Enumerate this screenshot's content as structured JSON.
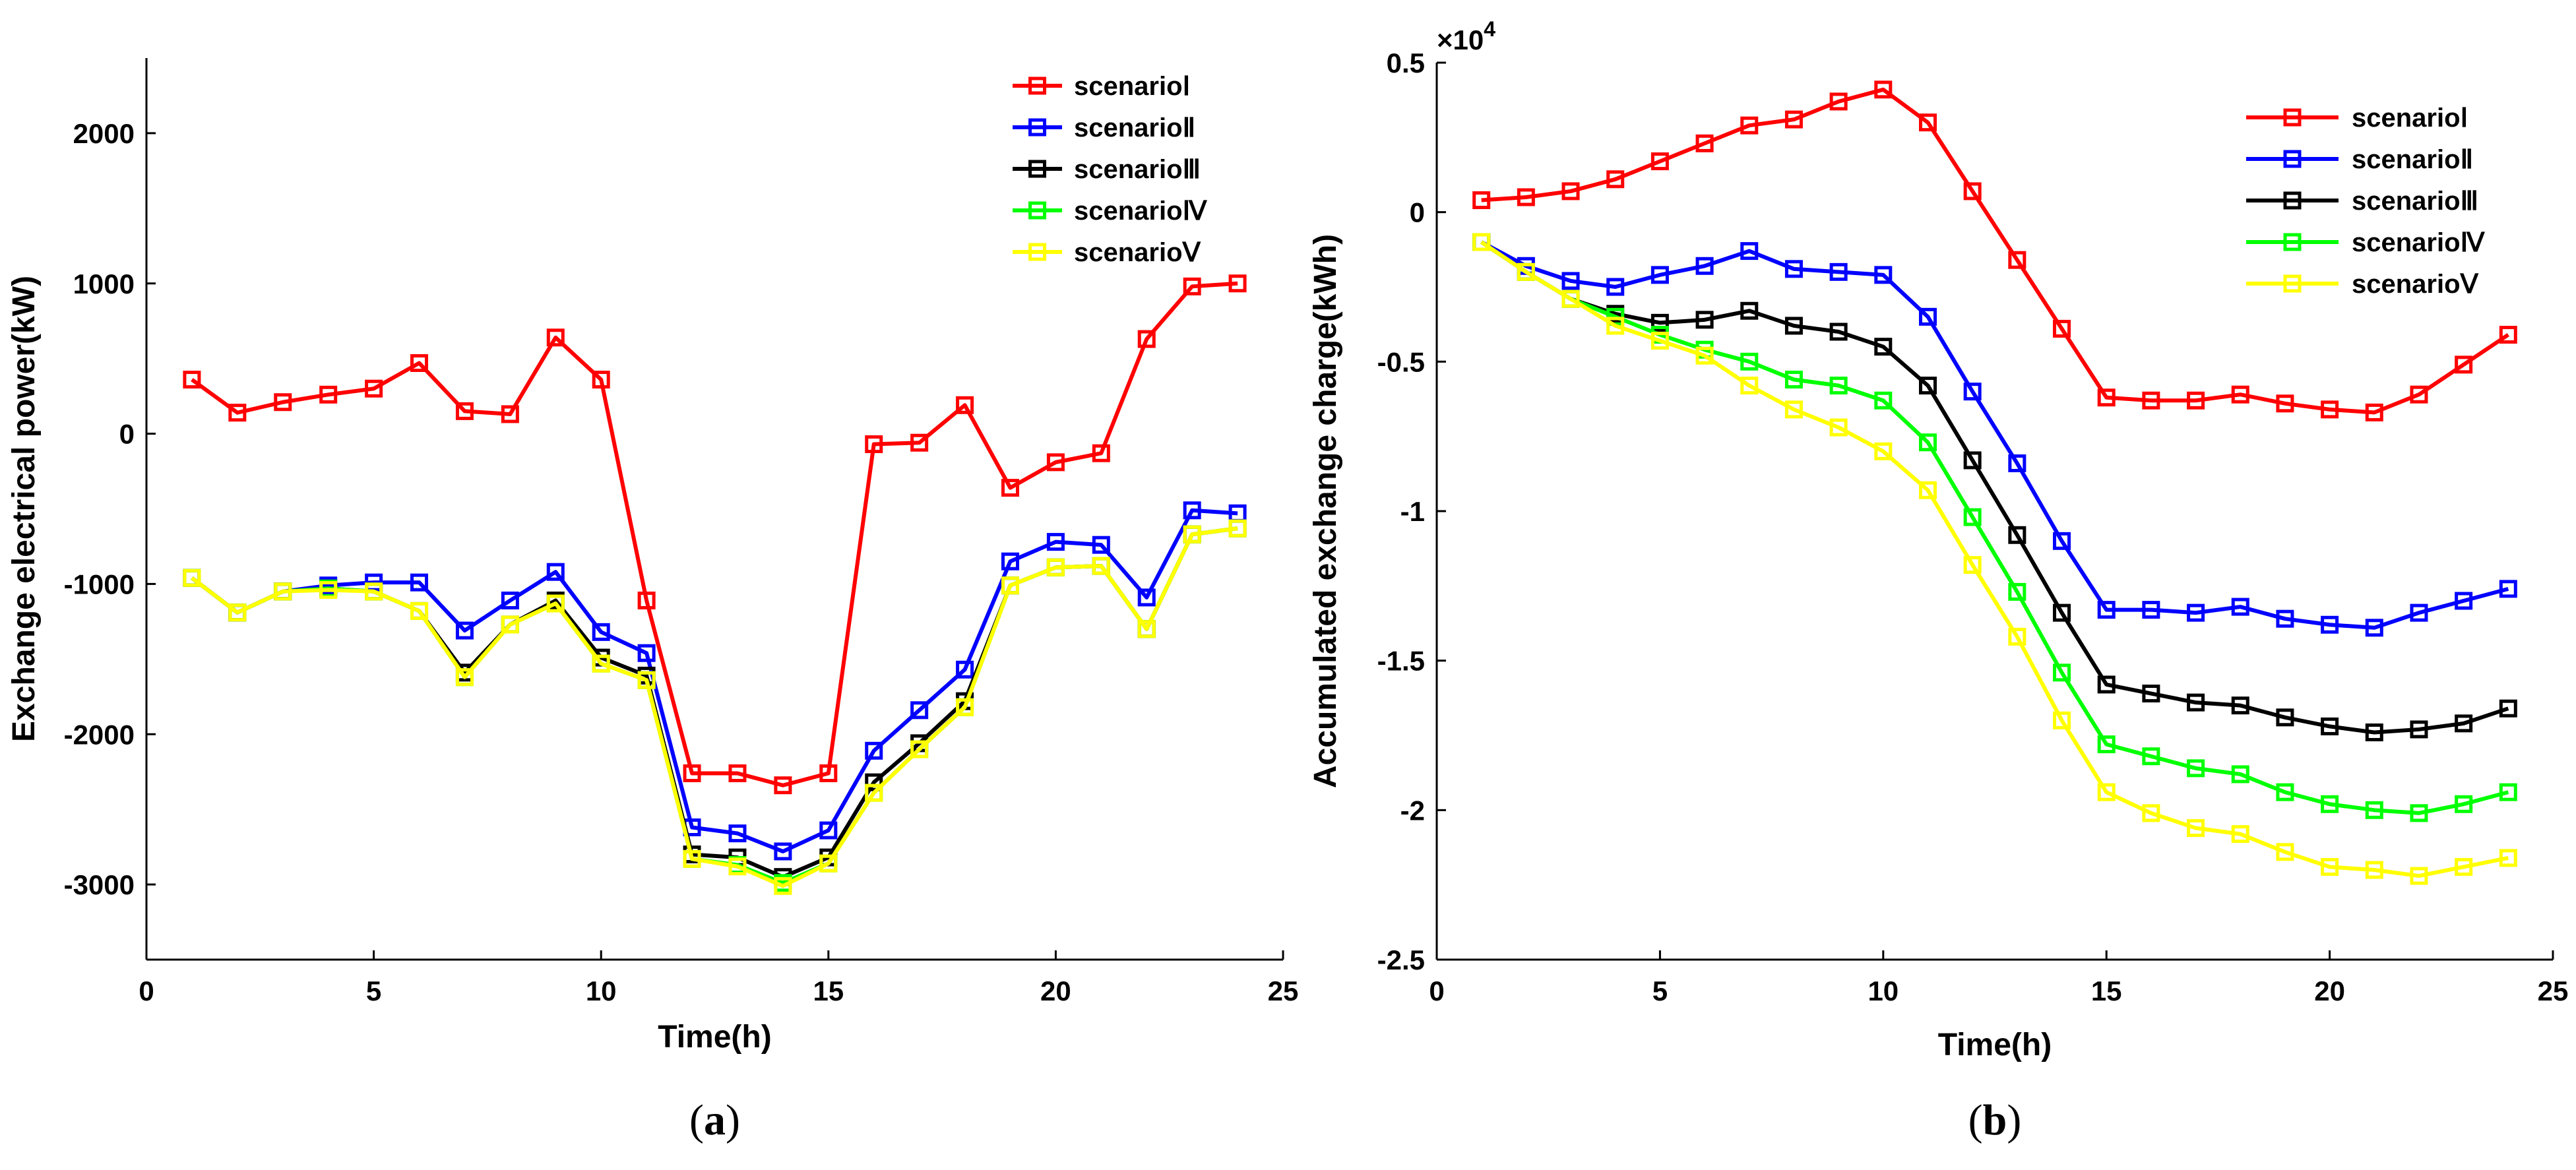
{
  "chart_data": [
    {
      "type": "line",
      "caption": "a",
      "xlabel": "Time(h)",
      "ylabel": "Exchange electrical power(kW)",
      "xlim": [
        0,
        25
      ],
      "ylim": [
        -3500,
        2500
      ],
      "xticks": [
        0,
        5,
        10,
        15,
        20,
        25
      ],
      "yticks": [
        -3000,
        -2000,
        -1000,
        0,
        1000,
        2000
      ],
      "x": [
        1,
        2,
        3,
        4,
        5,
        6,
        7,
        8,
        9,
        10,
        11,
        12,
        13,
        14,
        15,
        16,
        17,
        18,
        19,
        20,
        21,
        22,
        23,
        24
      ],
      "legend_position": "top-right",
      "series": [
        {
          "name": "scenarioⅠ",
          "color": "#ff0000",
          "values": [
            360,
            140,
            210,
            260,
            300,
            470,
            150,
            130,
            640,
            360,
            -1110,
            -2260,
            -2260,
            -2340,
            -2260,
            -70,
            -60,
            190,
            -360,
            -190,
            -130,
            630,
            980,
            1000
          ]
        },
        {
          "name": "scenarioⅡ",
          "color": "#0000ff",
          "values": [
            -960,
            -1190,
            -1050,
            -1010,
            -990,
            -990,
            -1310,
            -1110,
            -920,
            -1320,
            -1460,
            -2620,
            -2660,
            -2780,
            -2640,
            -2110,
            -1840,
            -1570,
            -850,
            -720,
            -740,
            -1090,
            -510,
            -530
          ]
        },
        {
          "name": "scenarioⅢ",
          "color": "#000000",
          "values": [
            -960,
            -1190,
            -1050,
            -1030,
            -1050,
            -1180,
            -1590,
            -1270,
            -1110,
            -1490,
            -1610,
            -2800,
            -2820,
            -2950,
            -2820,
            -2320,
            -2060,
            -1780,
            -1010,
            -890,
            -880,
            -1300,
            -670,
            -630
          ]
        },
        {
          "name": "scenarioⅣ",
          "color": "#00ff00",
          "values": [
            -960,
            -1190,
            -1050,
            -1030,
            -1050,
            -1180,
            -1620,
            -1270,
            -1130,
            -1530,
            -1640,
            -2830,
            -2870,
            -2990,
            -2860,
            -2390,
            -2100,
            -1820,
            -1010,
            -890,
            -880,
            -1300,
            -670,
            -630
          ]
        },
        {
          "name": "scenarioⅤ",
          "color": "#ffff00",
          "values": [
            -960,
            -1190,
            -1050,
            -1040,
            -1050,
            -1180,
            -1620,
            -1270,
            -1130,
            -1530,
            -1640,
            -2830,
            -2880,
            -3010,
            -2860,
            -2390,
            -2100,
            -1820,
            -1010,
            -890,
            -880,
            -1300,
            -670,
            -630
          ]
        }
      ]
    },
    {
      "type": "line",
      "caption": "b",
      "xlabel": "Time(h)",
      "ylabel": "Accumulated exchange charge(kWh)",
      "exponent_label": "×10",
      "exponent_power": "4",
      "xlim": [
        0,
        25
      ],
      "ylim": [
        -2.5,
        0.5
      ],
      "xticks": [
        0,
        5,
        10,
        15,
        20,
        25
      ],
      "yticks": [
        -2.5,
        -2,
        -1.5,
        -1,
        -0.5,
        0,
        0.5
      ],
      "ytick_labels": [
        "-2.5",
        "-2",
        "-1.5",
        "-1",
        "-0.5",
        "0",
        "0.5"
      ],
      "x": [
        1,
        2,
        3,
        4,
        5,
        6,
        7,
        8,
        9,
        10,
        11,
        12,
        13,
        14,
        15,
        16,
        17,
        18,
        19,
        20,
        21,
        22,
        23,
        24
      ],
      "legend_position": "top-right",
      "series": [
        {
          "name": "scenarioⅠ",
          "color": "#ff0000",
          "values": [
            0.04,
            0.05,
            0.07,
            0.11,
            0.17,
            0.23,
            0.29,
            0.31,
            0.37,
            0.41,
            0.3,
            0.07,
            -0.16,
            -0.39,
            -0.62,
            -0.63,
            -0.63,
            -0.61,
            -0.64,
            -0.66,
            -0.67,
            -0.61,
            -0.51,
            -0.41
          ]
        },
        {
          "name": "scenarioⅡ",
          "color": "#0000ff",
          "values": [
            -0.1,
            -0.18,
            -0.23,
            -0.25,
            -0.21,
            -0.18,
            -0.13,
            -0.19,
            -0.2,
            -0.21,
            -0.35,
            -0.6,
            -0.84,
            -1.1,
            -1.33,
            -1.33,
            -1.34,
            -1.32,
            -1.36,
            -1.38,
            -1.39,
            -1.34,
            -1.3,
            -1.26
          ]
        },
        {
          "name": "scenarioⅢ",
          "color": "#000000",
          "values": [
            -0.1,
            -0.2,
            -0.29,
            -0.34,
            -0.37,
            -0.36,
            -0.33,
            -0.38,
            -0.4,
            -0.45,
            -0.58,
            -0.83,
            -1.08,
            -1.34,
            -1.58,
            -1.61,
            -1.64,
            -1.65,
            -1.69,
            -1.72,
            -1.74,
            -1.73,
            -1.71,
            -1.66
          ]
        },
        {
          "name": "scenarioⅣ",
          "color": "#00ff00",
          "values": [
            -0.1,
            -0.2,
            -0.29,
            -0.35,
            -0.41,
            -0.46,
            -0.5,
            -0.56,
            -0.58,
            -0.63,
            -0.77,
            -1.02,
            -1.27,
            -1.54,
            -1.78,
            -1.82,
            -1.86,
            -1.88,
            -1.94,
            -1.98,
            -2.0,
            -2.01,
            -1.98,
            -1.94
          ]
        },
        {
          "name": "scenarioⅤ",
          "color": "#ffff00",
          "values": [
            -0.1,
            -0.2,
            -0.29,
            -0.38,
            -0.43,
            -0.48,
            -0.58,
            -0.66,
            -0.72,
            -0.8,
            -0.93,
            -1.18,
            -1.42,
            -1.7,
            -1.94,
            -2.01,
            -2.06,
            -2.08,
            -2.14,
            -2.19,
            -2.2,
            -2.22,
            -2.19,
            -2.16
          ]
        }
      ]
    }
  ]
}
